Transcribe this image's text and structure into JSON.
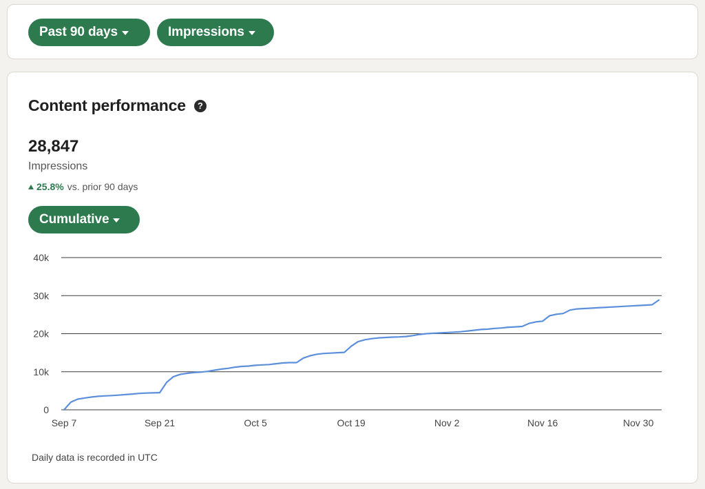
{
  "filters": {
    "range_label": "Past 90 days",
    "metric_label": "Impressions"
  },
  "card": {
    "title": "Content performance",
    "help_icon": "question-circle-icon",
    "total": "28,847",
    "total_label": "Impressions",
    "change_pct": "25.8%",
    "change_text": "vs. prior 90 days",
    "mode_label": "Cumulative",
    "footnote": "Daily data is recorded in UTC"
  },
  "colors": {
    "accent_green": "#2e7a4f",
    "line_blue": "#5b8fdc",
    "gridline": "#3a3a3a"
  },
  "chart_data": {
    "type": "line",
    "title": "",
    "xlabel": "",
    "ylabel": "",
    "ylim": [
      0,
      40000
    ],
    "yticks": [
      0,
      10000,
      20000,
      30000,
      40000
    ],
    "ytick_labels": [
      "0",
      "10k",
      "20k",
      "30k",
      "40k"
    ],
    "xticks": [
      "Sep 7",
      "Sep 21",
      "Oct 5",
      "Oct 19",
      "Nov 2",
      "Nov 16",
      "Nov 30"
    ],
    "x_range": [
      "Sep 7",
      "Dec 3"
    ],
    "grid": true,
    "legend": "none",
    "series": [
      {
        "points": [
          [
            "Sep 7",
            0
          ],
          [
            "Sep 8",
            2000
          ],
          [
            "Sep 9",
            2800
          ],
          [
            "Sep 10",
            3100
          ],
          [
            "Sep 11",
            3350
          ],
          [
            "Sep 12",
            3550
          ],
          [
            "Sep 13",
            3650
          ],
          [
            "Sep 14",
            3750
          ],
          [
            "Sep 15",
            3850
          ],
          [
            "Sep 16",
            4000
          ],
          [
            "Sep 17",
            4150
          ],
          [
            "Sep 18",
            4300
          ],
          [
            "Sep 19",
            4400
          ],
          [
            "Sep 20",
            4450
          ],
          [
            "Sep 21",
            4500
          ],
          [
            "Sep 22",
            7200
          ],
          [
            "Sep 23",
            8700
          ],
          [
            "Sep 24",
            9300
          ],
          [
            "Sep 25",
            9600
          ],
          [
            "Sep 26",
            9800
          ],
          [
            "Sep 27",
            9900
          ],
          [
            "Sep 28",
            10100
          ],
          [
            "Sep 29",
            10400
          ],
          [
            "Sep 30",
            10700
          ],
          [
            "Oct 1",
            10900
          ],
          [
            "Oct 2",
            11200
          ],
          [
            "Oct 3",
            11400
          ],
          [
            "Oct 4",
            11500
          ],
          [
            "Oct 5",
            11700
          ],
          [
            "Oct 6",
            11800
          ],
          [
            "Oct 7",
            11900
          ],
          [
            "Oct 8",
            12100
          ],
          [
            "Oct 9",
            12300
          ],
          [
            "Oct 10",
            12400
          ],
          [
            "Oct 11",
            12400
          ],
          [
            "Oct 12",
            13600
          ],
          [
            "Oct 13",
            14200
          ],
          [
            "Oct 14",
            14600
          ],
          [
            "Oct 15",
            14800
          ],
          [
            "Oct 16",
            14900
          ],
          [
            "Oct 17",
            15000
          ],
          [
            "Oct 18",
            15100
          ],
          [
            "Oct 19",
            16700
          ],
          [
            "Oct 20",
            17900
          ],
          [
            "Oct 21",
            18400
          ],
          [
            "Oct 22",
            18700
          ],
          [
            "Oct 23",
            18900
          ],
          [
            "Oct 24",
            19000
          ],
          [
            "Oct 25",
            19100
          ],
          [
            "Oct 26",
            19150
          ],
          [
            "Oct 27",
            19250
          ],
          [
            "Oct 28",
            19500
          ],
          [
            "Oct 29",
            19800
          ],
          [
            "Oct 30",
            20000
          ],
          [
            "Oct 31",
            20100
          ],
          [
            "Nov 1",
            20200
          ],
          [
            "Nov 2",
            20300
          ],
          [
            "Nov 3",
            20400
          ],
          [
            "Nov 4",
            20500
          ],
          [
            "Nov 5",
            20700
          ],
          [
            "Nov 6",
            20900
          ],
          [
            "Nov 7",
            21100
          ],
          [
            "Nov 8",
            21200
          ],
          [
            "Nov 9",
            21400
          ],
          [
            "Nov 10",
            21500
          ],
          [
            "Nov 11",
            21700
          ],
          [
            "Nov 12",
            21800
          ],
          [
            "Nov 13",
            21900
          ],
          [
            "Nov 14",
            22700
          ],
          [
            "Nov 15",
            23100
          ],
          [
            "Nov 16",
            23300
          ],
          [
            "Nov 17",
            24700
          ],
          [
            "Nov 18",
            25100
          ],
          [
            "Nov 19",
            25300
          ],
          [
            "Nov 20",
            26200
          ],
          [
            "Nov 21",
            26500
          ],
          [
            "Nov 22",
            26600
          ],
          [
            "Nov 23",
            26700
          ],
          [
            "Nov 24",
            26800
          ],
          [
            "Nov 25",
            26900
          ],
          [
            "Nov 26",
            27000
          ],
          [
            "Nov 27",
            27100
          ],
          [
            "Nov 28",
            27200
          ],
          [
            "Nov 29",
            27300
          ],
          [
            "Nov 30",
            27400
          ],
          [
            "Dec 1",
            27500
          ],
          [
            "Dec 2",
            27600
          ],
          [
            "Dec 3",
            28847
          ]
        ]
      }
    ]
  }
}
